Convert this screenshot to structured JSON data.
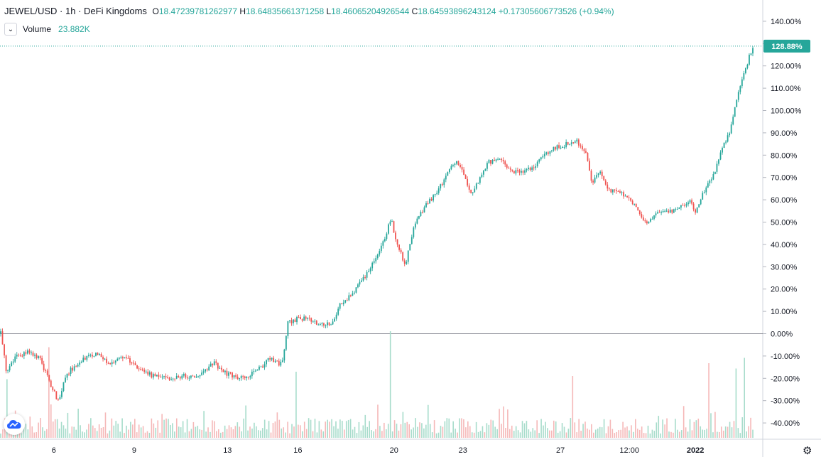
{
  "header": {
    "symbol": "JEWEL/USD",
    "interval": "1h",
    "exchange": "DeFi Kingdoms",
    "open_label": "O",
    "open": "18.47239781262977",
    "high_label": "H",
    "high": "18.64835661371258",
    "low_label": "L",
    "low": "18.46065204926544",
    "close_label": "C",
    "close": "18.64593896243124",
    "change": "+0.17305606773526 (+0.94%)"
  },
  "volume": {
    "label": "Volume",
    "value": "23.882K"
  },
  "colors": {
    "up": "#26a69a",
    "down": "#ef5350",
    "vol_up": "#a7dccb",
    "vol_down": "#f5b8b8",
    "last_price_bg": "#26a69a"
  },
  "icons": {
    "collapse": "chevron-down-icon",
    "logo": "tradingview-cloud-icon",
    "settings": "gear-icon"
  },
  "chart_data": {
    "type": "candlestick",
    "title": "JEWEL/USD · 1h · DeFi Kingdoms",
    "y_axis": {
      "unit": "%",
      "range": [
        -45,
        143
      ],
      "ticks": [
        "140.00%",
        "130.00%",
        "120.00%",
        "110.00%",
        "100.00%",
        "90.00%",
        "80.00%",
        "70.00%",
        "60.00%",
        "50.00%",
        "40.00%",
        "30.00%",
        "20.00%",
        "10.00%",
        "0.00%",
        "-10.00%",
        "-20.00%",
        "-30.00%",
        "-40.00%"
      ]
    },
    "x_axis": {
      "tick_labels": [
        "6",
        "9",
        "13",
        "16",
        "20",
        "23",
        "27",
        "12:00",
        "2022"
      ]
    },
    "last_value_label": "128.88%",
    "zero_line": "0.00%",
    "path": [
      {
        "t": 0,
        "y": 0
      },
      {
        "t": 2,
        "y": -17
      },
      {
        "t": 5,
        "y": -10
      },
      {
        "t": 10,
        "y": -8
      },
      {
        "t": 14,
        "y": -12
      },
      {
        "t": 17,
        "y": -22
      },
      {
        "t": 20,
        "y": -30
      },
      {
        "t": 23,
        "y": -18
      },
      {
        "t": 28,
        "y": -12
      },
      {
        "t": 33,
        "y": -9
      },
      {
        "t": 38,
        "y": -13
      },
      {
        "t": 43,
        "y": -10
      },
      {
        "t": 48,
        "y": -16
      },
      {
        "t": 53,
        "y": -19
      },
      {
        "t": 58,
        "y": -20
      },
      {
        "t": 63,
        "y": -19
      },
      {
        "t": 69,
        "y": -19
      },
      {
        "t": 74,
        "y": -13
      },
      {
        "t": 79,
        "y": -18
      },
      {
        "t": 84,
        "y": -20
      },
      {
        "t": 89,
        "y": -17
      },
      {
        "t": 94,
        "y": -11
      },
      {
        "t": 98,
        "y": -14
      },
      {
        "t": 100,
        "y": 5
      },
      {
        "t": 104,
        "y": 7
      },
      {
        "t": 108,
        "y": 6
      },
      {
        "t": 112,
        "y": 4
      },
      {
        "t": 116,
        "y": 5
      },
      {
        "t": 118,
        "y": 13
      },
      {
        "t": 122,
        "y": 17
      },
      {
        "t": 126,
        "y": 24
      },
      {
        "t": 130,
        "y": 32
      },
      {
        "t": 134,
        "y": 44
      },
      {
        "t": 136,
        "y": 52
      },
      {
        "t": 138,
        "y": 40
      },
      {
        "t": 141,
        "y": 31
      },
      {
        "t": 144,
        "y": 48
      },
      {
        "t": 148,
        "y": 58
      },
      {
        "t": 152,
        "y": 63
      },
      {
        "t": 156,
        "y": 73
      },
      {
        "t": 159,
        "y": 78
      },
      {
        "t": 161,
        "y": 72
      },
      {
        "t": 164,
        "y": 63
      },
      {
        "t": 167,
        "y": 70
      },
      {
        "t": 170,
        "y": 77
      },
      {
        "t": 174,
        "y": 78
      },
      {
        "t": 178,
        "y": 72
      },
      {
        "t": 182,
        "y": 73
      },
      {
        "t": 186,
        "y": 75
      },
      {
        "t": 190,
        "y": 81
      },
      {
        "t": 194,
        "y": 84
      },
      {
        "t": 198,
        "y": 85
      },
      {
        "t": 201,
        "y": 86
      },
      {
        "t": 204,
        "y": 80
      },
      {
        "t": 206,
        "y": 68
      },
      {
        "t": 209,
        "y": 72
      },
      {
        "t": 212,
        "y": 64
      },
      {
        "t": 216,
        "y": 63
      },
      {
        "t": 219,
        "y": 60
      },
      {
        "t": 222,
        "y": 55
      },
      {
        "t": 225,
        "y": 50
      },
      {
        "t": 228,
        "y": 53
      },
      {
        "t": 231,
        "y": 56
      },
      {
        "t": 234,
        "y": 54
      },
      {
        "t": 237,
        "y": 58
      },
      {
        "t": 240,
        "y": 59
      },
      {
        "t": 242,
        "y": 55
      },
      {
        "t": 244,
        "y": 61
      },
      {
        "t": 246,
        "y": 67
      },
      {
        "t": 248,
        "y": 70
      },
      {
        "t": 250,
        "y": 78
      },
      {
        "t": 252,
        "y": 85
      },
      {
        "t": 254,
        "y": 90
      },
      {
        "t": 256,
        "y": 104
      },
      {
        "t": 258,
        "y": 112
      },
      {
        "t": 260,
        "y": 121
      },
      {
        "t": 262,
        "y": 128.88
      }
    ],
    "volume_spikes": [
      {
        "t": 2,
        "v": 0.55
      },
      {
        "t": 17,
        "v": 0.85
      },
      {
        "t": 103,
        "v": 0.62
      },
      {
        "t": 136,
        "v": 1.0
      },
      {
        "t": 199,
        "v": 0.58
      },
      {
        "t": 247,
        "v": 0.7
      },
      {
        "t": 256,
        "v": 0.65
      },
      {
        "t": 259,
        "v": 0.75
      }
    ]
  }
}
